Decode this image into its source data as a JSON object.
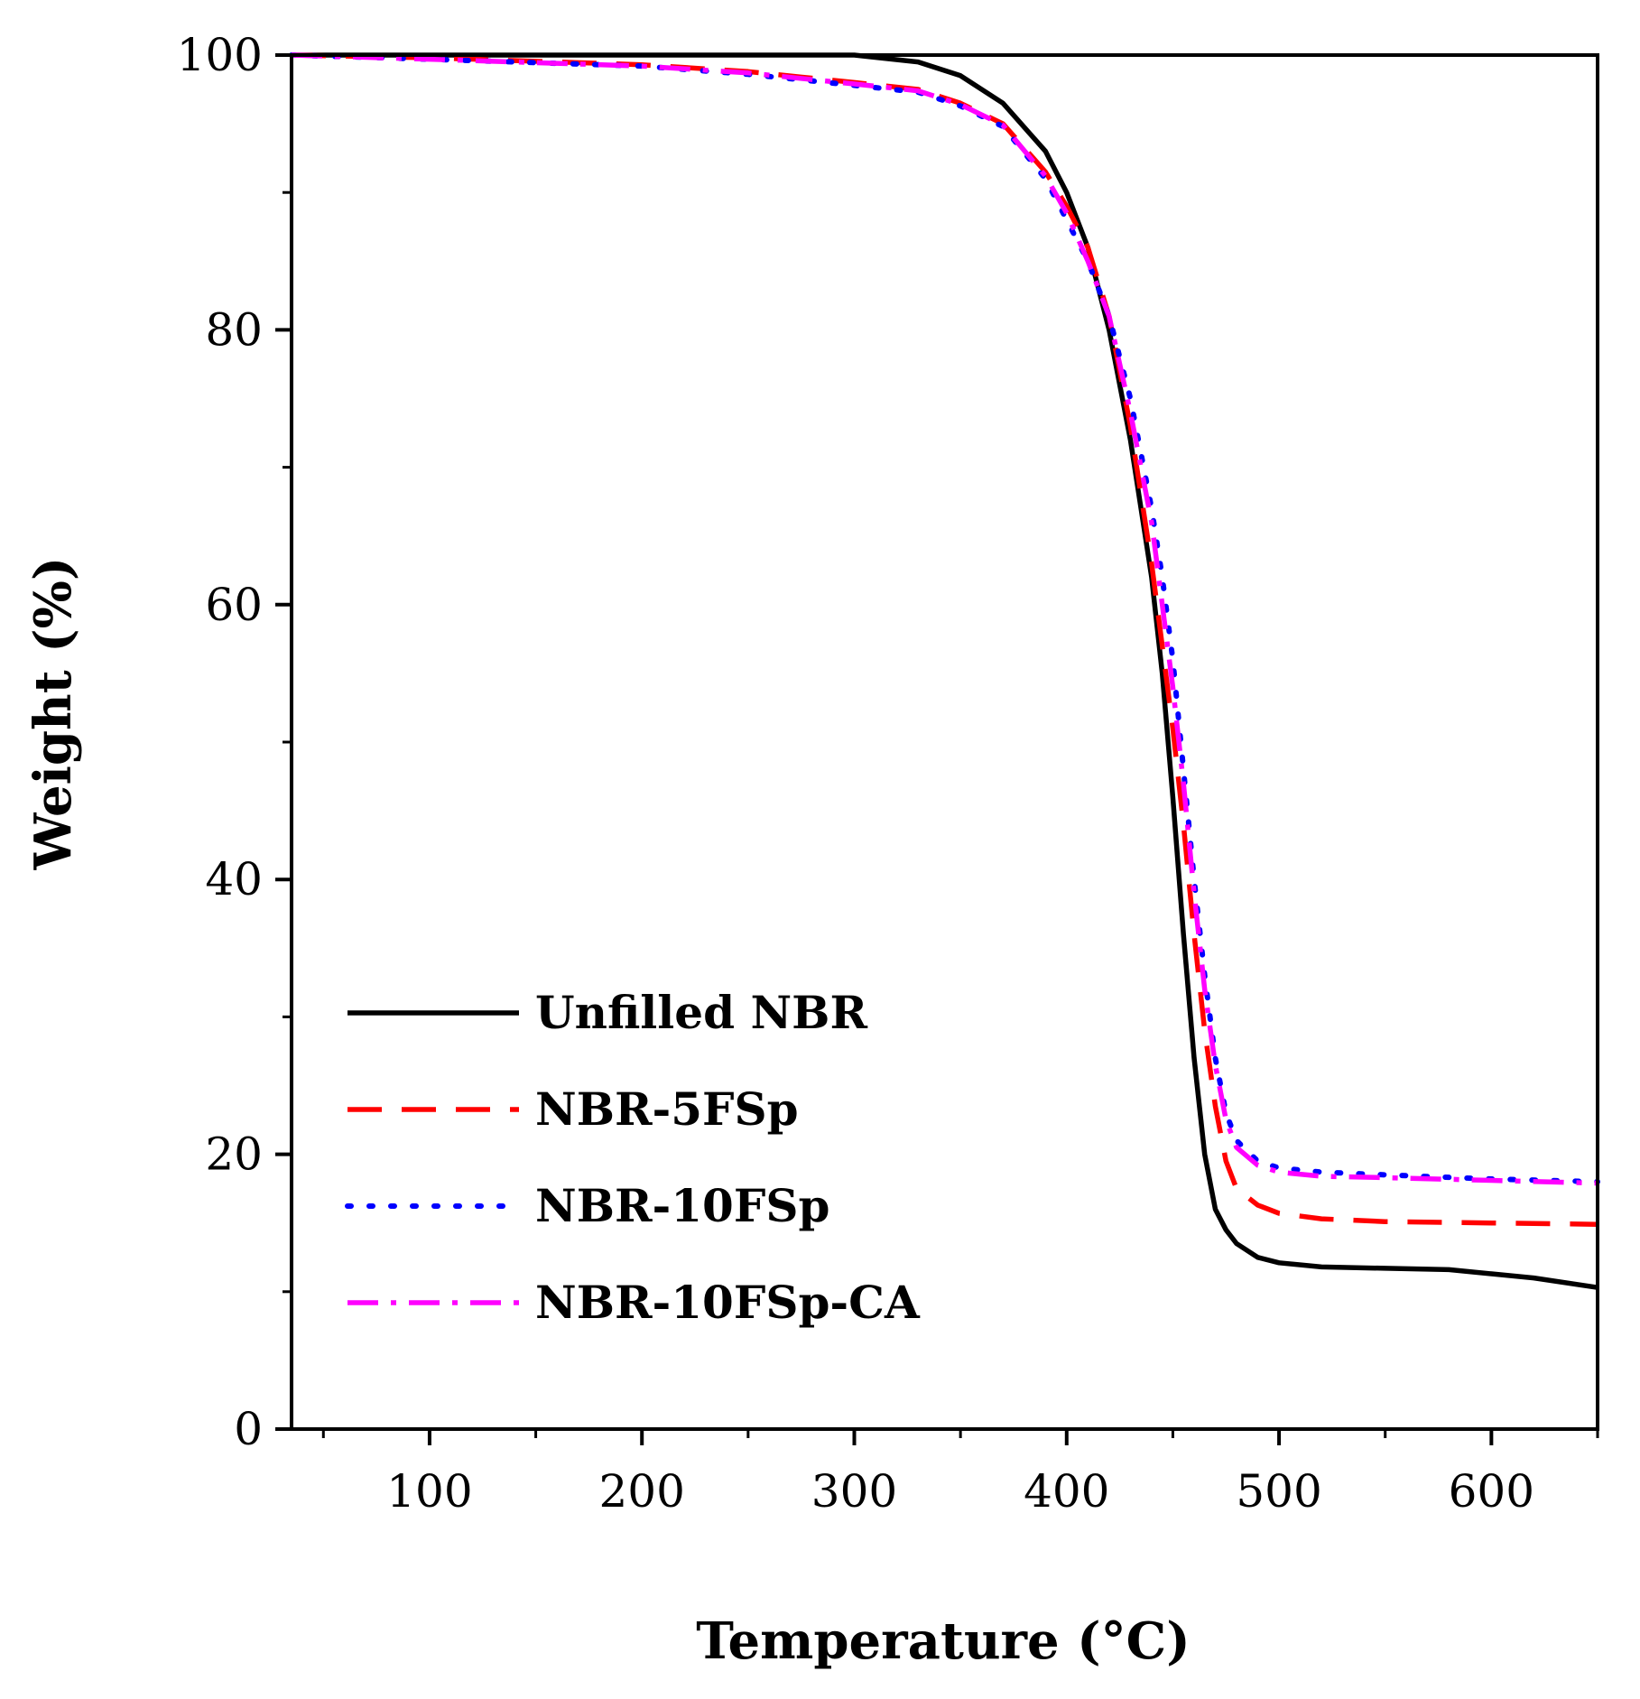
{
  "chart_data": {
    "type": "line",
    "title": "",
    "xlabel": "Temperature (°C)",
    "ylabel": "Weight (%)",
    "xlim": [
      35,
      650
    ],
    "ylim": [
      0,
      100
    ],
    "xticks": [
      100,
      200,
      300,
      400,
      500,
      600
    ],
    "xticks_minor": [
      50,
      150,
      250,
      350,
      450,
      550,
      650
    ],
    "yticks": [
      0,
      20,
      40,
      60,
      80,
      100
    ],
    "yticks_minor": [
      10,
      30,
      50,
      70,
      90
    ],
    "grid": false,
    "legend_position": "bottom-left",
    "series": [
      {
        "name": "Unfilled NBR",
        "color": "#000000",
        "dash": "solid",
        "x": [
          35,
          100,
          200,
          300,
          330,
          350,
          370,
          390,
          400,
          410,
          420,
          430,
          440,
          445,
          450,
          455,
          460,
          465,
          470,
          475,
          480,
          490,
          500,
          520,
          550,
          580,
          600,
          620,
          650
        ],
        "y": [
          100,
          100,
          100,
          100,
          99.5,
          98.5,
          96.5,
          93,
          90,
          86,
          80,
          72,
          62,
          55,
          46,
          36,
          27,
          20,
          16,
          14.5,
          13.5,
          12.5,
          12.1,
          11.8,
          11.7,
          11.6,
          11.3,
          11.0,
          10.3
        ]
      },
      {
        "name": "NBR-5FSp",
        "color": "#ff0000",
        "dash": "dashed",
        "x": [
          35,
          100,
          200,
          250,
          300,
          330,
          350,
          370,
          390,
          400,
          410,
          420,
          430,
          440,
          445,
          450,
          455,
          460,
          465,
          470,
          475,
          480,
          490,
          500,
          520,
          550,
          600,
          650
        ],
        "y": [
          100,
          99.8,
          99.3,
          98.8,
          98.0,
          97.5,
          96.5,
          95.0,
          91.5,
          89,
          86,
          81,
          73,
          63,
          57,
          51,
          44,
          36,
          29,
          23.5,
          19.5,
          17.5,
          16.3,
          15.7,
          15.3,
          15.1,
          15.0,
          14.9
        ]
      },
      {
        "name": "NBR-10FSp",
        "color": "#0000ff",
        "dash": "dotted",
        "x": [
          35,
          100,
          200,
          250,
          300,
          330,
          350,
          370,
          390,
          400,
          410,
          420,
          430,
          440,
          445,
          450,
          455,
          460,
          465,
          470,
          475,
          480,
          490,
          500,
          520,
          550,
          600,
          650
        ],
        "y": [
          100,
          99.7,
          99.2,
          98.6,
          97.8,
          97.3,
          96.3,
          94.8,
          91.0,
          88,
          85,
          81,
          75,
          67,
          62,
          56,
          48,
          40,
          33,
          27,
          23,
          21,
          19.5,
          19.0,
          18.7,
          18.5,
          18.2,
          18.0
        ]
      },
      {
        "name": "NBR-10FSp-CA",
        "color": "#ff00ff",
        "dash": "dashdot",
        "x": [
          35,
          100,
          200,
          250,
          300,
          330,
          350,
          370,
          390,
          400,
          410,
          420,
          430,
          440,
          445,
          450,
          455,
          460,
          465,
          470,
          475,
          480,
          490,
          500,
          520,
          550,
          600,
          650
        ],
        "y": [
          100,
          99.7,
          99.2,
          98.7,
          97.9,
          97.4,
          96.4,
          94.9,
          91.2,
          88.5,
          85,
          81,
          74,
          66,
          60,
          54,
          47,
          39,
          32,
          26.5,
          22.5,
          20.5,
          19.2,
          18.7,
          18.4,
          18.3,
          18.1,
          17.9
        ]
      }
    ]
  }
}
